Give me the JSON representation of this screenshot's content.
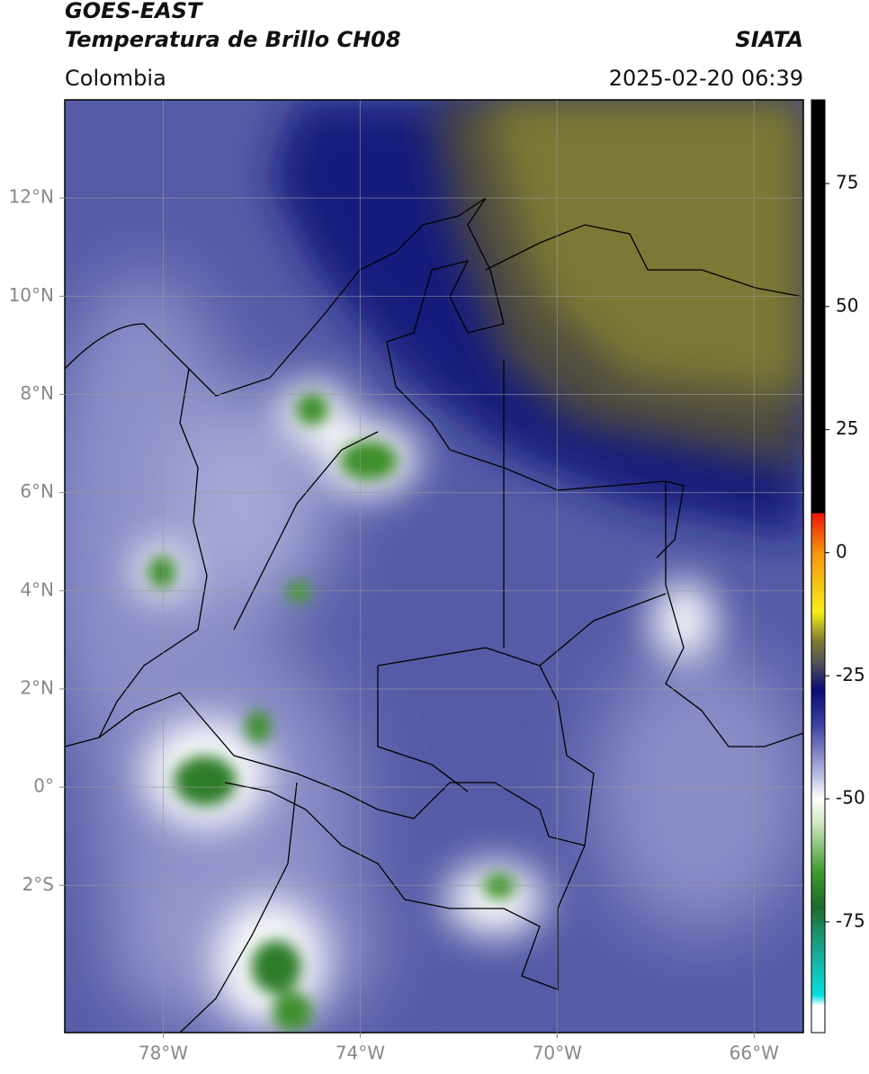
{
  "header": {
    "title_line1": "GOES-EAST",
    "title_line2": "Temperatura de Brillo CH08",
    "org": "SIATA",
    "region": "Colombia",
    "datetime": "2025-02-20 06:39"
  },
  "map": {
    "xlim": [
      -80,
      -65
    ],
    "ylim": [
      -5,
      14
    ],
    "xticks": [
      {
        "value": -78,
        "label": "78°W"
      },
      {
        "value": -74,
        "label": "74°W"
      },
      {
        "value": -70,
        "label": "70°W"
      },
      {
        "value": -66,
        "label": "66°W"
      }
    ],
    "yticks": [
      {
        "value": 12,
        "label": "12°N"
      },
      {
        "value": 10,
        "label": "10°N"
      },
      {
        "value": 8,
        "label": "8°N"
      },
      {
        "value": 6,
        "label": "6°N"
      },
      {
        "value": 4,
        "label": "4°N"
      },
      {
        "value": 2,
        "label": "2°N"
      },
      {
        "value": 0,
        "label": "0°"
      },
      {
        "value": -2,
        "label": "2°S"
      }
    ],
    "grid": true
  },
  "colorbar": {
    "lim": [
      -97.5,
      92
    ],
    "ticks": [
      75,
      50,
      25,
      0,
      -25,
      -50,
      -75
    ]
  }
}
